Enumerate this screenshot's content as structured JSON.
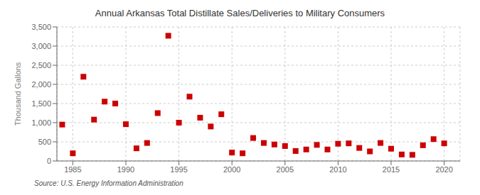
{
  "chart_data": {
    "type": "scatter",
    "title": "Annual Arkansas Total Distillate Sales/Deliveries to Military Consumers",
    "ylabel": "Thousand Gallons",
    "source": "Source: U.S. Energy Information Administration",
    "x": [
      1984,
      1985,
      1986,
      1987,
      1988,
      1989,
      1990,
      1991,
      1992,
      1993,
      1994,
      1995,
      1996,
      1997,
      1998,
      1999,
      2000,
      2001,
      2002,
      2003,
      2004,
      2005,
      2006,
      2007,
      2008,
      2009,
      2010,
      2011,
      2012,
      2013,
      2014,
      2015,
      2016,
      2017,
      2018,
      2019,
      2020
    ],
    "values": [
      950,
      200,
      2200,
      1080,
      1550,
      1500,
      960,
      330,
      470,
      1250,
      3270,
      1000,
      1680,
      1130,
      900,
      1220,
      220,
      200,
      600,
      470,
      430,
      390,
      260,
      300,
      420,
      300,
      450,
      460,
      340,
      250,
      470,
      320,
      170,
      160,
      410,
      570,
      460
    ],
    "color": "#cc0000",
    "marker": "square",
    "xlim": [
      1983.5,
      2021.5
    ],
    "ylim": [
      0,
      3500
    ],
    "xticks": [
      1985,
      1990,
      1995,
      2000,
      2005,
      2010,
      2015,
      2020
    ],
    "yticks": [
      0,
      500,
      {
        "value": 1000,
        "label": "1,000"
      },
      {
        "value": 1500,
        "label": "1,500"
      },
      {
        "value": 2000,
        "label": "2,000"
      },
      {
        "value": 2500,
        "label": "2,500"
      },
      {
        "value": 3000,
        "label": "3,000"
      },
      {
        "value": 3500,
        "label": "3,500"
      }
    ],
    "grid": true
  }
}
